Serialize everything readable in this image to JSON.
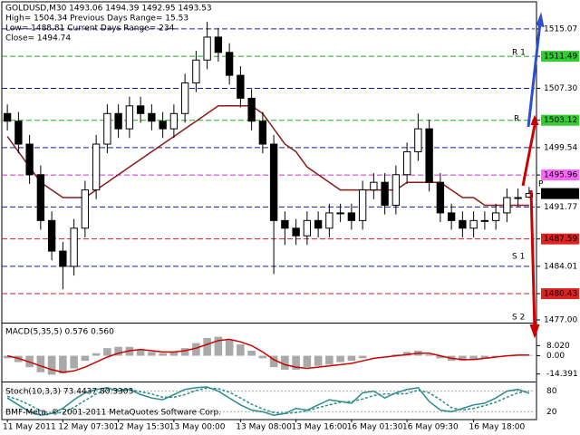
{
  "chart_data": [
    {
      "type": "candlestick",
      "info": [
        "GOLDUSD,M30  1493.06 1494.39 1492.95 1493.53",
        "High= 1504.34   Previous Days Range= 15.53",
        "Low= 1488.81   Current Days Range= 234",
        "Close= 1494.74"
      ],
      "categories": [
        "11 May 2011",
        null,
        null,
        null,
        null,
        "12 May 07:30",
        null,
        null,
        null,
        null,
        "12 May 15:30",
        null,
        null,
        null,
        null,
        "13 May 00:00",
        null,
        null,
        null,
        null,
        null,
        "13 May 08:00",
        null,
        null,
        null,
        null,
        "13 May 16:00",
        null,
        null,
        null,
        null,
        "16 May 01:30",
        null,
        null,
        null,
        null,
        "16 May 09:30",
        null,
        null,
        null,
        null,
        null,
        "16 May 18:00",
        null,
        null,
        null,
        null,
        null
      ],
      "open": [
        1504,
        1503,
        1500,
        1496,
        1490,
        1486,
        1484,
        1489,
        1494,
        1500,
        1504,
        1502,
        1505,
        1504,
        1503,
        1502,
        1504,
        1508,
        1511,
        1514,
        1512,
        1509,
        1506,
        1503,
        1500,
        1490,
        1489,
        1488,
        1490,
        1489,
        1491,
        1491,
        1490,
        1494,
        1495,
        1492,
        1496,
        1499,
        1502,
        1495,
        1491,
        1490,
        1489,
        1490,
        1490,
        1491,
        1493,
        1493.06
      ],
      "high": [
        1505.2,
        1504.2,
        1501.2,
        1497.2,
        1491.2,
        1487.2,
        1490.2,
        1495.2,
        1501.2,
        1505.2,
        1505.2,
        1506.2,
        1506.2,
        1505.2,
        1504.2,
        1505.2,
        1509.2,
        1512.2,
        1516,
        1515.2,
        1513.2,
        1510.2,
        1507.2,
        1504.2,
        1501.2,
        1491.2,
        1490.2,
        1491.2,
        1491.2,
        1492.2,
        1492.2,
        1492.2,
        1495.2,
        1496.2,
        1496.2,
        1497.2,
        1500.2,
        1504,
        1503.2,
        1496.2,
        1492.2,
        1491.2,
        1491.2,
        1491.2,
        1492.2,
        1494.2,
        1494.2,
        1494.39
      ],
      "low": [
        1501.8,
        1498.8,
        1494.8,
        1488.8,
        1484.8,
        1481,
        1482.8,
        1487.8,
        1492.8,
        1498.8,
        1500.8,
        1500.8,
        1502.8,
        1501.8,
        1500.8,
        1500.8,
        1502.8,
        1506.8,
        1509.8,
        1510.8,
        1507.8,
        1504.8,
        1501.8,
        1498.8,
        1483,
        1486.8,
        1486.8,
        1486.8,
        1487.8,
        1487.8,
        1489.8,
        1488.8,
        1488.8,
        1492.8,
        1490.8,
        1490.8,
        1494.8,
        1497.8,
        1493.8,
        1489.8,
        1488.8,
        1487.8,
        1487.8,
        1488.8,
        1488.8,
        1489.8,
        1491.8,
        1492.95
      ],
      "close": [
        1503,
        1500,
        1496,
        1490,
        1486,
        1484,
        1489,
        1494,
        1500,
        1504,
        1502,
        1505,
        1504,
        1503,
        1502,
        1504,
        1508,
        1511,
        1514,
        1512,
        1509,
        1506,
        1503,
        1500,
        1490,
        1489,
        1488,
        1490,
        1489,
        1491,
        1491,
        1490,
        1494,
        1495,
        1492,
        1496,
        1499,
        1502,
        1495,
        1491,
        1490,
        1489,
        1490,
        1490,
        1491,
        1493,
        1493,
        1493.53
      ],
      "overlay": {
        "color": "#8b1a1a",
        "values": [
          1501,
          1499,
          1497,
          1495,
          1494,
          1493,
          1493,
          1493,
          1494,
          1495,
          1496,
          1497,
          1498,
          1499,
          1500,
          1501,
          1502,
          1503,
          1504,
          1505,
          1505,
          1505,
          1505,
          1504,
          1502,
          1500,
          1499,
          1497,
          1496,
          1495,
          1494,
          1494,
          1494,
          1494,
          1494,
          1494,
          1495,
          1495,
          1495,
          1495,
          1494,
          1493,
          1493,
          1492,
          1492,
          1492,
          1492,
          1492
        ]
      },
      "ylim": [
        1476.76,
        1518.5
      ],
      "yticks": [
        1515.07,
        1511.49,
        {
          "value": 1507.3,
          "label": "1507.30"
        },
        1503.12,
        1499.54,
        1495.96,
        1493.53,
        1491.77,
        1487.59,
        1484.01,
        1480.43,
        {
          "value": 1477,
          "label": "1477.00"
        }
      ],
      "annotations": [
        "R 1",
        "R",
        "P",
        "S 1",
        "S 2"
      ]
    },
    {
      "type": "macd",
      "label": "MACD(5,35,5) 0.576 0.560",
      "histogram": {
        "color": "#a9a9a9",
        "values": [
          -2,
          -5,
          -9,
          -13,
          -15,
          -14,
          -10,
          -4,
          2,
          6,
          7,
          7,
          5,
          3,
          2,
          3,
          6,
          10,
          14,
          15,
          13,
          9,
          4,
          -2,
          -9,
          -11,
          -11,
          -9,
          -8,
          -7,
          -5,
          -4,
          -2,
          0,
          0,
          1,
          3,
          4,
          1,
          -2,
          -4,
          -4,
          -3,
          -2,
          -1,
          0,
          1,
          0.576
        ]
      },
      "signal": {
        "color": "#cc0000",
        "values": [
          0,
          -2,
          -5,
          -8,
          -11,
          -13,
          -12,
          -9,
          -5,
          -1,
          2,
          4,
          5,
          4,
          3,
          3,
          4,
          6,
          9,
          12,
          13,
          11,
          8,
          3,
          -3,
          -7,
          -9,
          -10,
          -9,
          -8,
          -7,
          -6,
          -4,
          -2,
          -1,
          0,
          1,
          2,
          2,
          0,
          -2,
          -3,
          -3,
          -2,
          -1,
          0,
          0.5,
          0.56
        ]
      },
      "ylim": [
        -18.9,
        24.7
      ],
      "yticks": [
        {
          "value": 8.02,
          "label": "8.020"
        },
        {
          "value": 0,
          "label": "0.00"
        },
        -14.391
      ]
    },
    {
      "type": "stochastic",
      "label": "Stoch(10,3,3) 73.4437 80.3303",
      "main": {
        "color": "#2e8b8b",
        "values": [
          60,
          40,
          20,
          10,
          15,
          30,
          55,
          75,
          85,
          90,
          80,
          85,
          70,
          60,
          55,
          70,
          85,
          90,
          92,
          80,
          60,
          40,
          25,
          20,
          10,
          15,
          30,
          25,
          40,
          55,
          50,
          45,
          75,
          80,
          60,
          75,
          85,
          90,
          50,
          25,
          20,
          30,
          40,
          45,
          60,
          80,
          85,
          73.4437
        ]
      },
      "signal": {
        "color": "#2e8b8b",
        "values": [
          65,
          55,
          40,
          23,
          15,
          18,
          33,
          53,
          72,
          83,
          85,
          85,
          78,
          72,
          62,
          62,
          70,
          82,
          89,
          87,
          77,
          60,
          42,
          28,
          18,
          15,
          18,
          23,
          32,
          40,
          48,
          50,
          57,
          67,
          72,
          72,
          73,
          83,
          75,
          55,
          32,
          25,
          30,
          38,
          48,
          62,
          75,
          80.3303
        ]
      },
      "ylim": [
        0,
        100
      ],
      "yticks": [
        80,
        20
      ],
      "footer": "BMF-Meta, © 2001-2011 MetaQuotes Software Corp."
    }
  ]
}
